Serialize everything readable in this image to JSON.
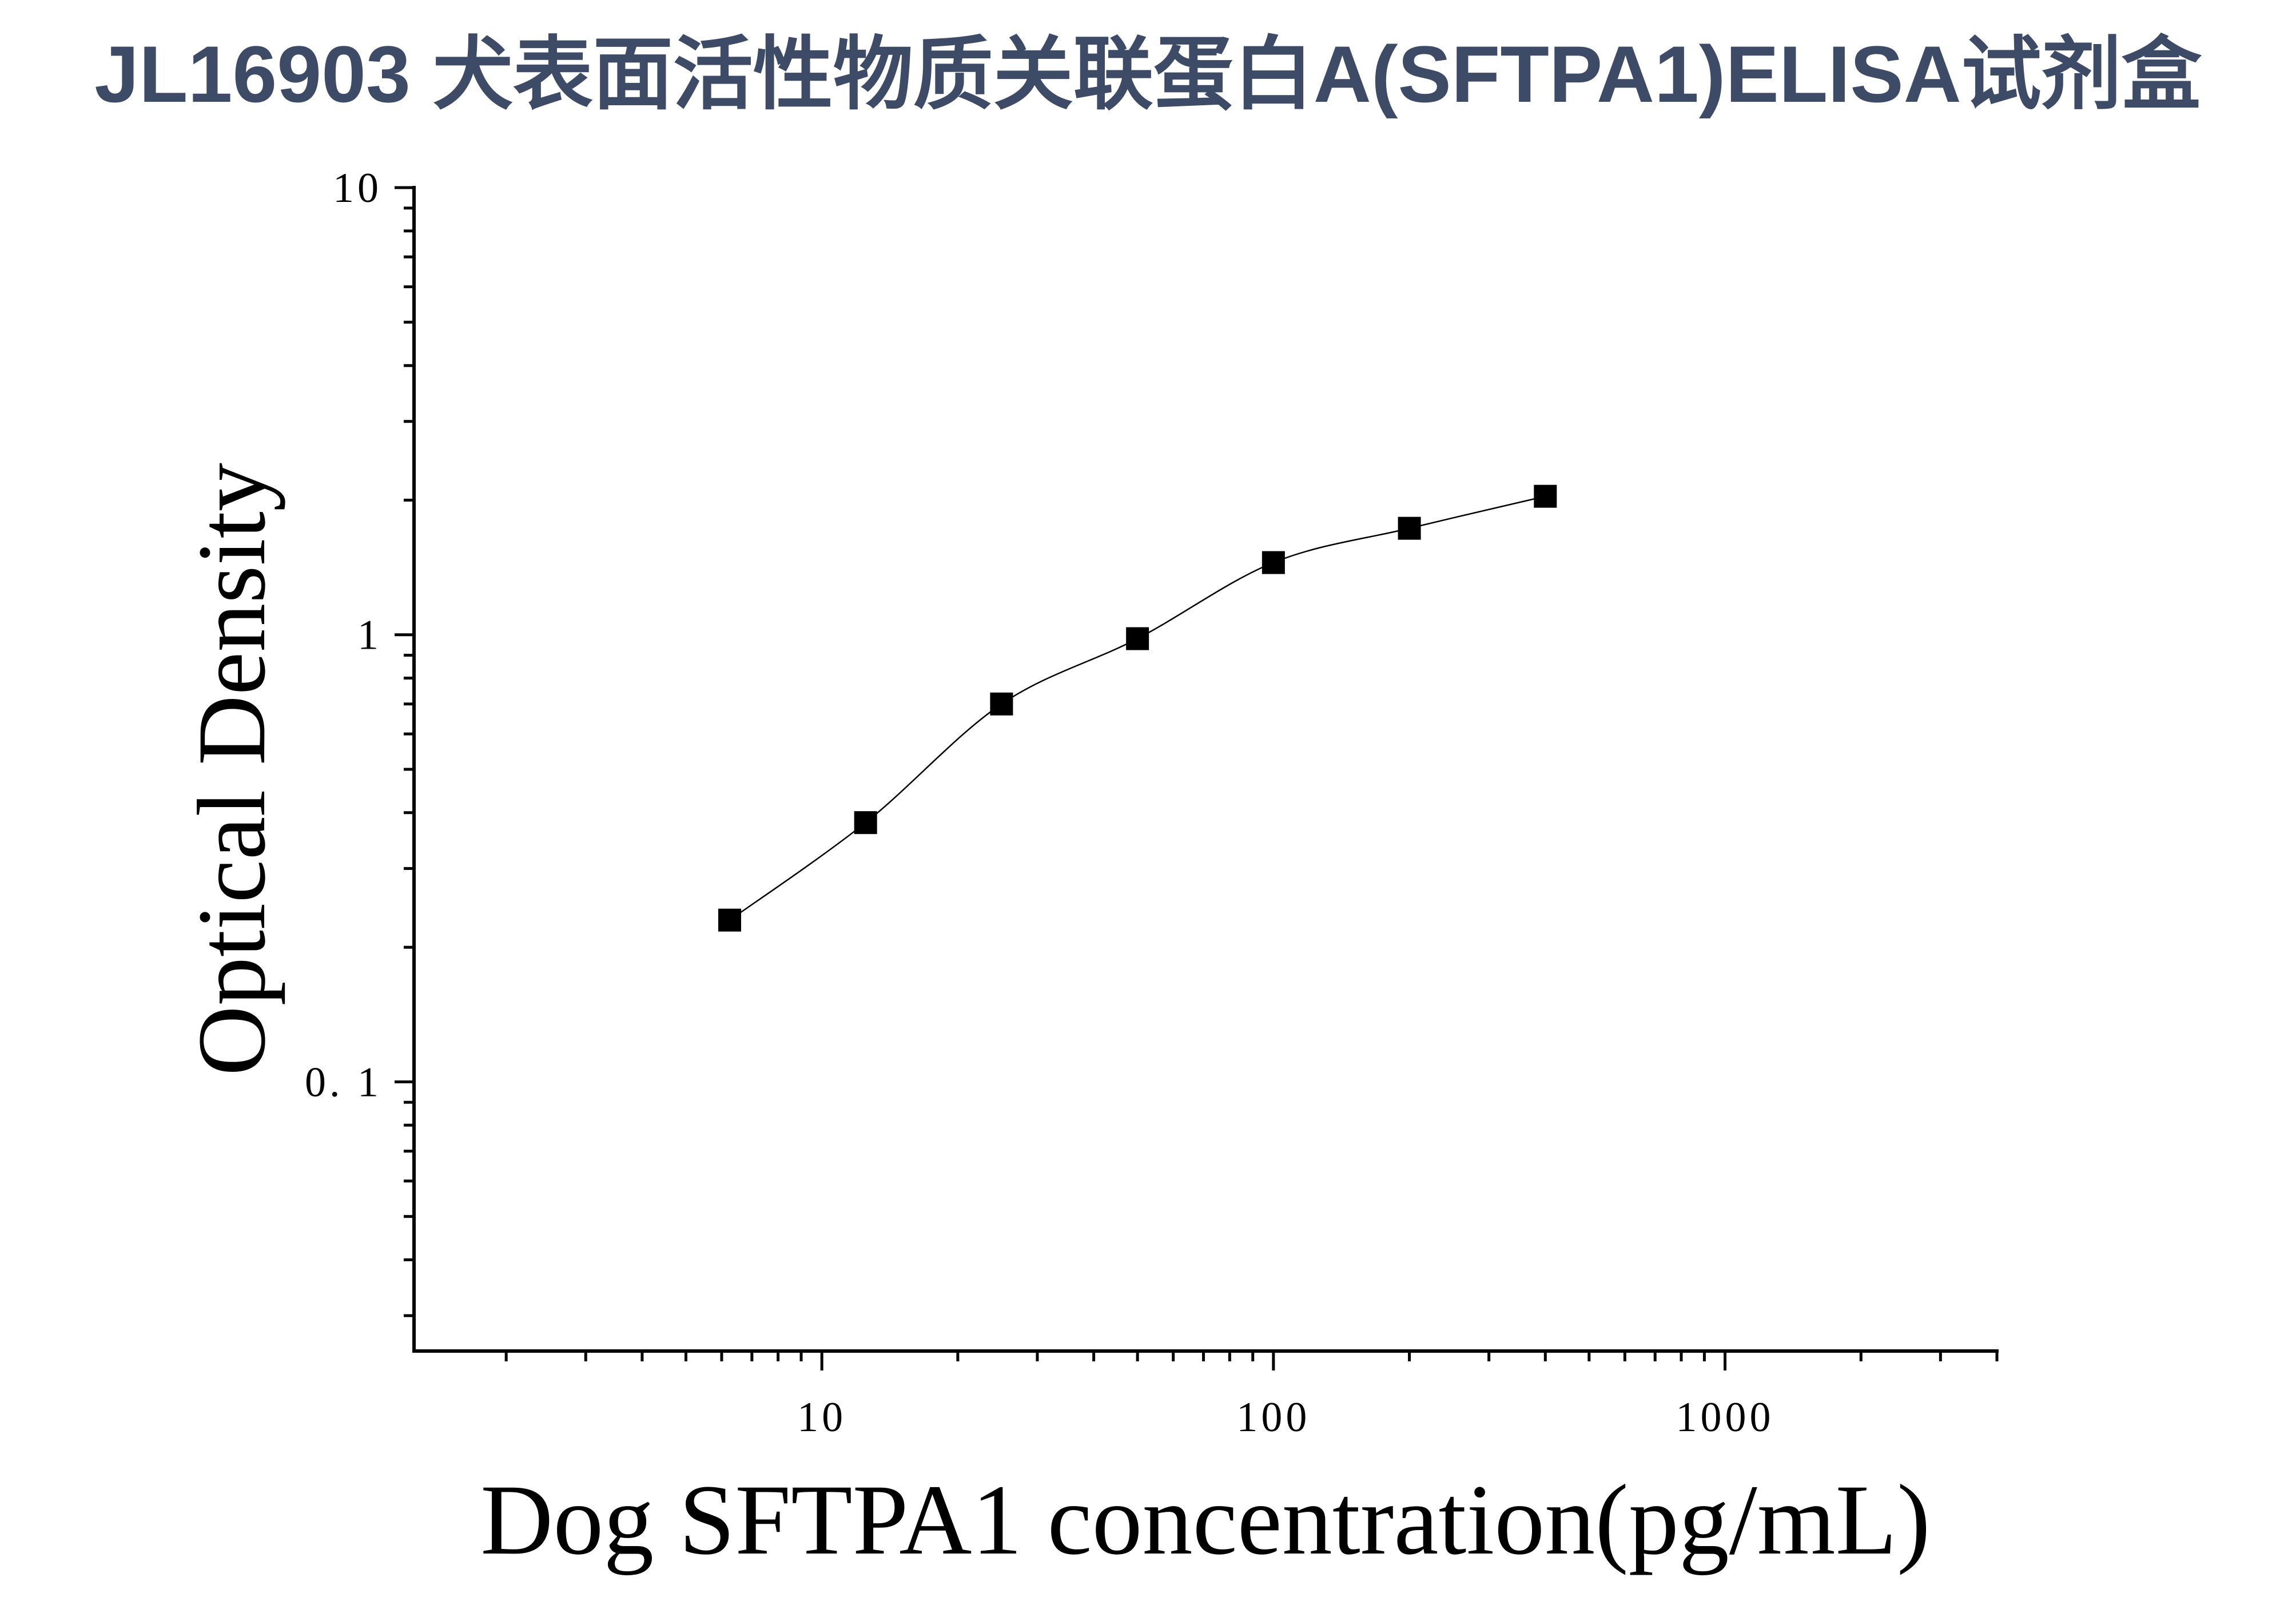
{
  "chart_data": {
    "type": "scatter",
    "title": "JL16903 犬表面活性物质关联蛋白A(SFTPA1)ELISA试剂盒",
    "xlabel": "Dog SFTPA1 concentration(pg/mL)",
    "ylabel": "Optical Density",
    "xscale": "log",
    "yscale": "log",
    "xlim": [
      1.25,
      4000
    ],
    "ylim": [
      0.025,
      10
    ],
    "xticks": [
      {
        "value": 10,
        "label": "10"
      },
      {
        "value": 100,
        "label": "100"
      },
      {
        "value": 1000,
        "label": "1000"
      }
    ],
    "yticks": [
      {
        "value": 10,
        "label": "10"
      },
      {
        "value": 1,
        "label": "1"
      },
      {
        "value": 0.1,
        "label": "0. 1"
      }
    ],
    "grid": false,
    "legend": "none",
    "marker": "square",
    "fit_line": true,
    "series": [
      {
        "x": [
          6.25,
          12.5,
          25,
          50,
          100,
          200,
          400
        ],
        "y": [
          0.23,
          0.38,
          0.7,
          0.98,
          1.45,
          1.73,
          2.04
        ]
      }
    ],
    "colors": {
      "title": "#3d4b66",
      "marker": "#000000",
      "line": "#000000",
      "axis": "#000000"
    }
  }
}
